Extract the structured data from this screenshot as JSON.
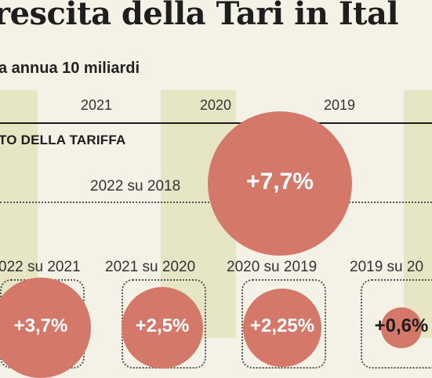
{
  "header": {
    "title": "rescita della Tari in Ital",
    "subtitle": "a annua 10 miliardi"
  },
  "years": [
    "2021",
    "2020",
    "2019"
  ],
  "section_label": "TO DELLA TARIFFA",
  "colors": {
    "bubble": "#d4786a",
    "stripe": "#e6e5c4",
    "background": "#f4f1e6"
  },
  "chart_data": {
    "type": "bubble",
    "title": "rescita della Tari in Ital",
    "subtitle": "a annua 10 miliardi",
    "legend": "TO DELLA TARIFFA",
    "cumulative": {
      "label": "2022 su 2018",
      "value": 7.7,
      "display": "+7,7%"
    },
    "annual": [
      {
        "label": "022 su 2021",
        "value": 3.7,
        "display": "+3,7%"
      },
      {
        "label": "2021 su 2020",
        "value": 2.5,
        "display": "+2,5%"
      },
      {
        "label": "2020 su 2019",
        "value": 2.25,
        "display": "+2,25%"
      },
      {
        "label": "2019 su 20",
        "value": 0.6,
        "display": "+0,6%"
      }
    ]
  }
}
